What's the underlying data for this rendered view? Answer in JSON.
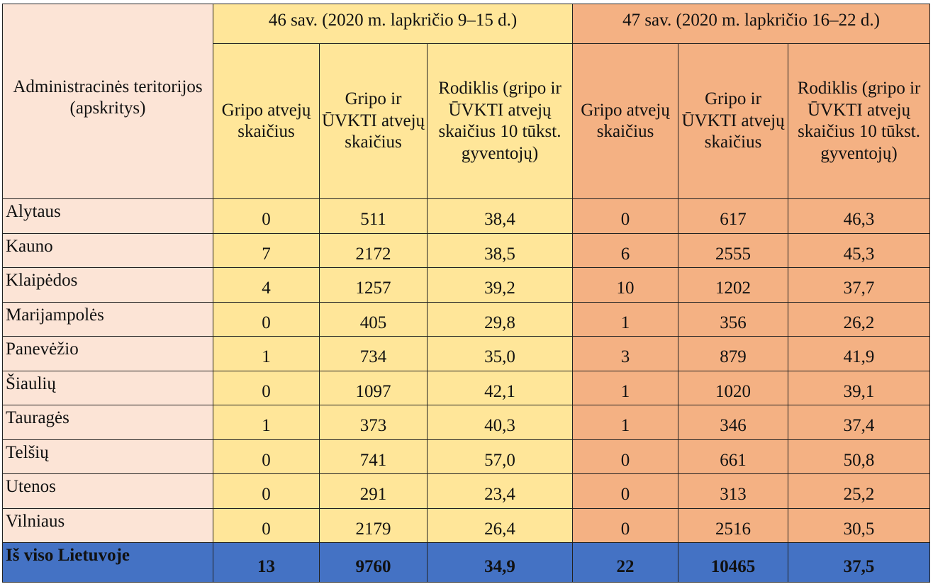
{
  "header": {
    "admin_territories": "Administracinės teritorijos (apskritys)",
    "week46": "46 sav. (2020 m. lapkričio 9–15 d.)",
    "week47": "47 sav. (2020 m. lapkričio 16–22 d.)",
    "col_flu_cases": "Gripo atvejų skaičius",
    "col_flu_ari_cases": "Gripo ir ŪVKTI atvejų skaičius",
    "col_rate": "Rodiklis (gripo ir ŪVKTI atvejų skaičius 10 tūkst. gyventojų)"
  },
  "rows": [
    {
      "region": "Alytaus",
      "w46": [
        "0",
        "511",
        "38,4"
      ],
      "w47": [
        "0",
        "617",
        "46,3"
      ]
    },
    {
      "region": "Kauno",
      "w46": [
        "7",
        "2172",
        "38,5"
      ],
      "w47": [
        "6",
        "2555",
        "45,3"
      ]
    },
    {
      "region": "Klaipėdos",
      "w46": [
        "4",
        "1257",
        "39,2"
      ],
      "w47": [
        "10",
        "1202",
        "37,7"
      ]
    },
    {
      "region": "Marijampolės",
      "w46": [
        "0",
        "405",
        "29,8"
      ],
      "w47": [
        "1",
        "356",
        "26,2"
      ]
    },
    {
      "region": "Panevėžio",
      "w46": [
        "1",
        "734",
        "35,0"
      ],
      "w47": [
        "3",
        "879",
        "41,9"
      ]
    },
    {
      "region": "Šiaulių",
      "w46": [
        "0",
        "1097",
        "42,1"
      ],
      "w47": [
        "1",
        "1020",
        "39,1"
      ]
    },
    {
      "region": "Tauragės",
      "w46": [
        "1",
        "373",
        "40,3"
      ],
      "w47": [
        "1",
        "346",
        "37,4"
      ]
    },
    {
      "region": "Telšių",
      "w46": [
        "0",
        "741",
        "57,0"
      ],
      "w47": [
        "0",
        "661",
        "50,8"
      ]
    },
    {
      "region": "Utenos",
      "w46": [
        "0",
        "291",
        "23,4"
      ],
      "w47": [
        "0",
        "313",
        "25,2"
      ]
    },
    {
      "region": "Vilniaus",
      "w46": [
        "0",
        "2179",
        "26,4"
      ],
      "w47": [
        "0",
        "2516",
        "30,5"
      ]
    }
  ],
  "total": {
    "region": "Iš viso Lietuvoje",
    "w46": [
      "13",
      "9760",
      "34,9"
    ],
    "w47": [
      "22",
      "10465",
      "37,5"
    ]
  },
  "colors": {
    "region_bg": "#fce4d6",
    "week46_bg": "#ffe699",
    "week47_bg": "#f4b183",
    "total_bg": "#4472c4"
  }
}
